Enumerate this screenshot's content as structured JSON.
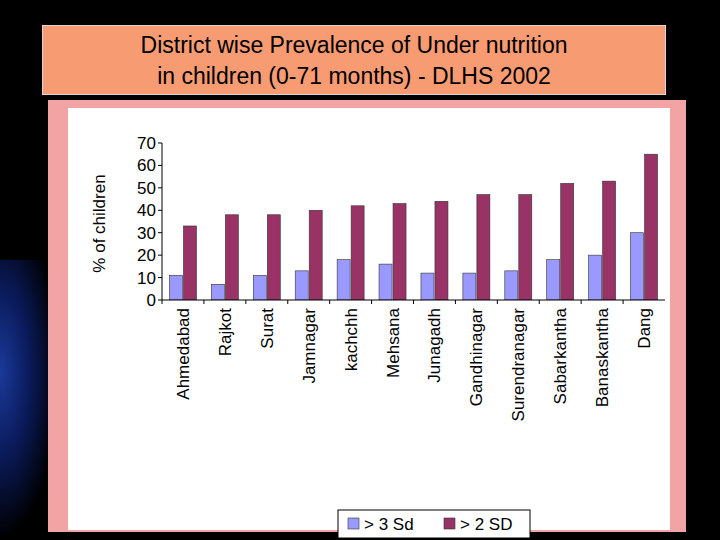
{
  "chart_data": {
    "type": "bar",
    "title": "District wise Prevalence of Under nutrition\nin children (0-71 months) - DLHS 2002",
    "y_label": "% of children",
    "categories": [
      "Ahmedabad",
      "Rajkot",
      "Surat",
      "Jamnagar",
      "kachchh",
      "Mehsana",
      "Junagadh",
      "Gandhinagar",
      "Surendranagar",
      "Sabarkantha",
      "Banaskantha",
      "Dang"
    ],
    "series": [
      {
        "name": "> 3 Sd",
        "color": "#9999ff",
        "values": [
          11,
          7,
          11,
          13,
          18,
          16,
          12,
          12,
          13,
          18,
          20,
          30
        ]
      },
      {
        "name": "> 2 SD",
        "color": "#993366",
        "values": [
          33,
          38,
          38,
          40,
          42,
          43,
          44,
          47,
          47,
          52,
          53,
          65
        ]
      }
    ],
    "ylim": [
      0,
      70
    ],
    "yticks": [
      0,
      10,
      20,
      30,
      40,
      50,
      60,
      70
    ],
    "grid": false,
    "legend": "bottom"
  }
}
